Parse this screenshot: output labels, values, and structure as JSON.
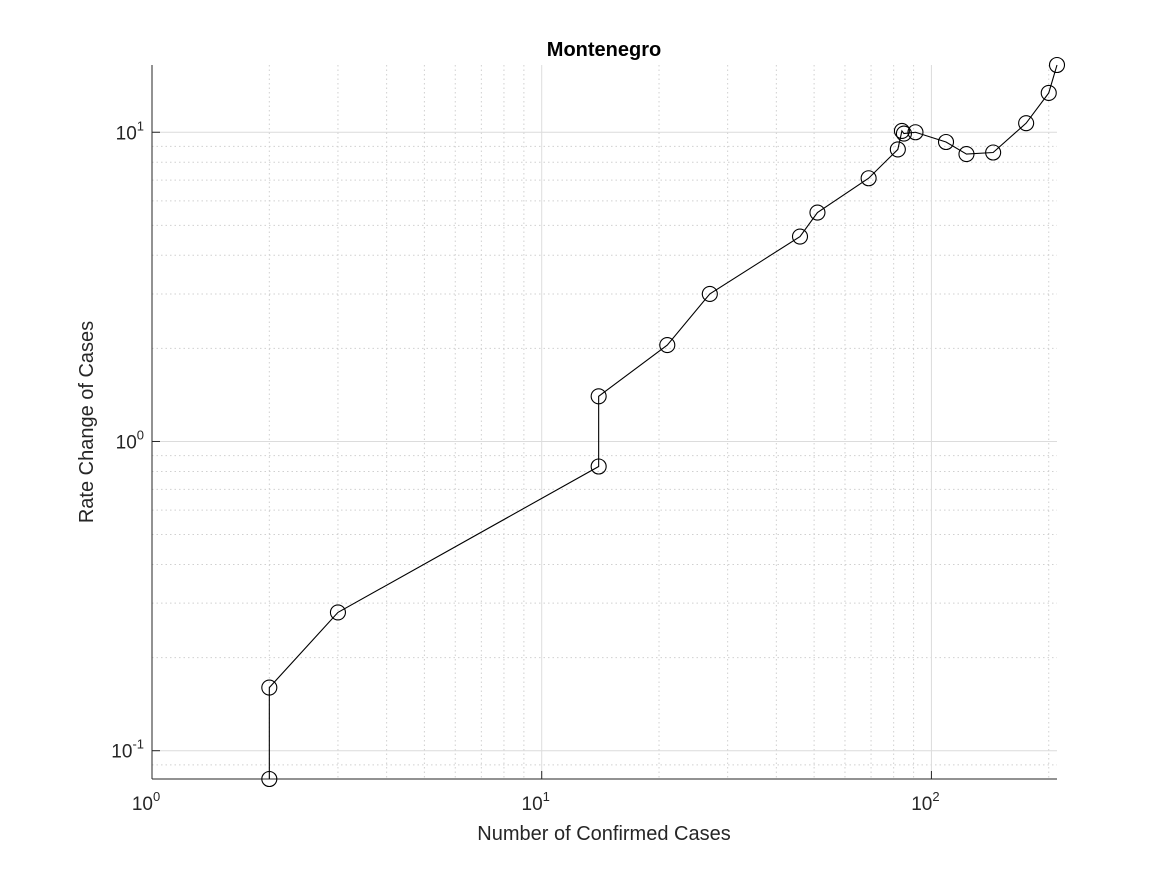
{
  "chart_data": {
    "type": "line",
    "title": "Montenegro",
    "xlabel": "Number of Confirmed Cases",
    "ylabel": "Rate Change of Cases",
    "xscale": "log",
    "yscale": "log",
    "xlim": [
      1,
      210
    ],
    "ylim": [
      0.081,
      16.5
    ],
    "grid": true,
    "marker": "circle",
    "line_color": "#000000",
    "x_ticks": [
      {
        "value": 1,
        "base": "10",
        "exp": "0"
      },
      {
        "value": 10,
        "base": "10",
        "exp": "1"
      },
      {
        "value": 100,
        "base": "10",
        "exp": "2"
      }
    ],
    "y_ticks": [
      {
        "value": 0.1,
        "base": "10",
        "exp": "-1"
      },
      {
        "value": 1,
        "base": "10",
        "exp": "0"
      },
      {
        "value": 10,
        "base": "10",
        "exp": "1"
      }
    ],
    "series": [
      {
        "x": [
          2,
          2,
          3,
          14,
          14,
          21,
          27,
          46,
          51,
          69,
          82,
          84,
          85,
          91,
          109,
          123,
          144,
          175,
          200,
          210
        ],
        "y": [
          0.081,
          0.16,
          0.28,
          0.83,
          1.4,
          2.05,
          3.0,
          4.6,
          5.5,
          7.1,
          8.8,
          10.1,
          9.9,
          10.0,
          9.3,
          8.5,
          8.6,
          10.7,
          13.4,
          16.5
        ]
      }
    ]
  }
}
